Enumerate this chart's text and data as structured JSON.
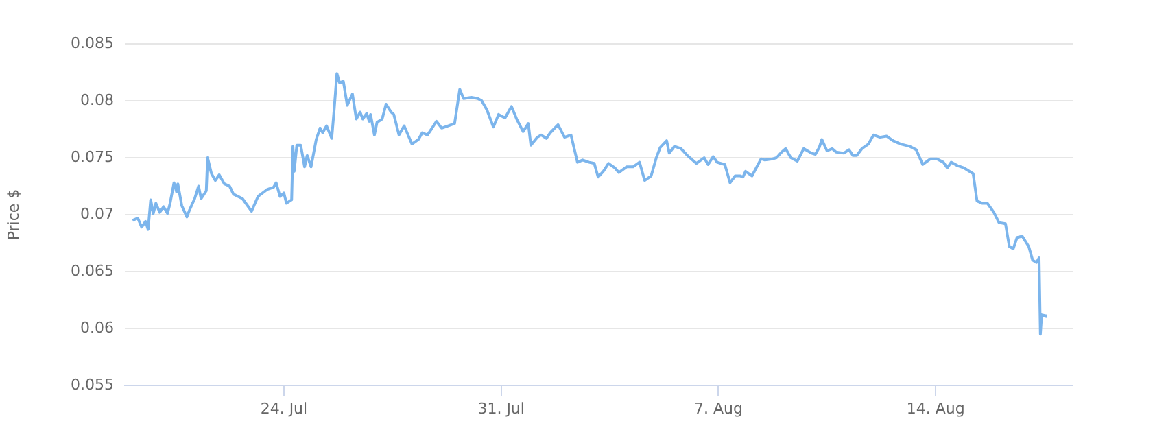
{
  "chart_data": {
    "type": "line",
    "ylabel": "Price $",
    "x": [
      "--07-19T03:00",
      "--07-19T07:00",
      "--07-19T10:00",
      "--07-19T13:00",
      "--07-19T15:00",
      "--07-19T17:00",
      "--07-19T19:00",
      "--07-19T21:00",
      "--07-20T00:00",
      "--07-20T03:00",
      "--07-20T06:00",
      "--07-20T08:00",
      "--07-20T11:00",
      "--07-20T13:00",
      "--07-20T14:00",
      "--07-20T17:00",
      "--07-20T21:00",
      "--07-20T23:00",
      "--07-21T03:00",
      "--07-21T06:00",
      "--07-21T08:00",
      "--07-21T12:00",
      "--07-21T13:00",
      "--07-21T16:00",
      "--07-21T19:00",
      "--07-21T22:00",
      "--07-22T02:00",
      "--07-22T06:00",
      "--07-22T09:00",
      "--07-22T16:00",
      "--07-22T23:00",
      "--07-23T04:00",
      "--07-23T11:00",
      "--07-23T16:00",
      "--07-23T18:00",
      "--07-23T21:00",
      "--07-24T00:00",
      "--07-24T02:00",
      "--07-24T06:00",
      "--07-24T07:00",
      "--07-24T08:00",
      "--07-24T10:00",
      "--07-24T13:00",
      "--07-24T16:00",
      "--07-24T18:00",
      "--07-24T21:00",
      "--07-25T01:00",
      "--07-25T04:00",
      "--07-25T06:00",
      "--07-25T09:00",
      "--07-25T13:00",
      "--07-25T15:00",
      "--07-25T17:00",
      "--07-25T19:00",
      "--07-25T22:00",
      "--07-26T01:00",
      "--07-26T05:00",
      "--07-26T08:00",
      "--07-26T11:00",
      "--07-26T13:00",
      "--07-26T16:00",
      "--07-26T18:00",
      "--07-26T19:00",
      "--07-26T22:00",
      "--07-27T00:00",
      "--07-27T04:00",
      "--07-27T07:00",
      "--07-27T11:00",
      "--07-27T13:00",
      "--07-27T17:00",
      "--07-27T21:00",
      "--07-28T00:00",
      "--07-28T03:00",
      "--07-28T08:00",
      "--07-28T11:00",
      "--07-28T15:00",
      "--07-28T18:00",
      "--07-28T22:00",
      "--07-29T02:00",
      "--07-29T07:00",
      "--07-29T12:00",
      "--07-29T16:00",
      "--07-29T19:00",
      "--07-30T01:00",
      "--07-30T06:00",
      "--07-30T09:00",
      "--07-30T13:00",
      "--07-30T18:00",
      "--07-30T22:00",
      "--07-31T03:00",
      "--07-31T08:00",
      "--07-31T12:00",
      "--07-31T17:00",
      "--07-31T21:00",
      "--07-31T23:00",
      "--08-01T04:00",
      "--08-01T07:00",
      "--08-01T11:00",
      "--08-01T14:00",
      "--08-01T20:00",
      "--08-02T01:00",
      "--08-02T06:00",
      "--08-02T11:00",
      "--08-02T15:00",
      "--08-02T20:00",
      "--08-03T00:00",
      "--08-03T03:00",
      "--08-03T07:00",
      "--08-03T11:00",
      "--08-03T16:00",
      "--08-03T19:00",
      "--08-04T01:00",
      "--08-04T06:00",
      "--08-04T11:00",
      "--08-04T15:00",
      "--08-04T20:00",
      "--08-05T00:00",
      "--08-05T03:00",
      "--08-05T08:00",
      "--08-05T10:00",
      "--08-05T14:00",
      "--08-05T19:00",
      "--08-06T00:00",
      "--08-06T07:00",
      "--08-06T13:00",
      "--08-06T16:00",
      "--08-06T20:00",
      "--08-06T23:00",
      "--08-07T05:00",
      "--08-07T09:00",
      "--08-07T13:00",
      "--08-07T17:00",
      "--08-07T19:00",
      "--08-07T21:00",
      "--08-08T02:00",
      "--08-08T09:00",
      "--08-08T12:00",
      "--08-08T18:00",
      "--08-08T21:00",
      "--08-09T01:00",
      "--08-09T04:00",
      "--08-09T08:00",
      "--08-09T13:00",
      "--08-09T18:00",
      "--08-10T00:00",
      "--08-10T03:00",
      "--08-10T06:00",
      "--08-10T08:00",
      "--08-10T12:00",
      "--08-10T16:00",
      "--08-10T19:00",
      "--08-11T01:00",
      "--08-11T05:00",
      "--08-11T08:00",
      "--08-11T11:00",
      "--08-11T15:00",
      "--08-11T20:00",
      "--08-12T00:00",
      "--08-12T05:00",
      "--08-12T10:00",
      "--08-12T15:00",
      "--08-12T21:00",
      "--08-13T04:00",
      "--08-13T09:00",
      "--08-13T14:00",
      "--08-13T20:00",
      "--08-14T01:00",
      "--08-14T06:00",
      "--08-14T09:00",
      "--08-14T12:00",
      "--08-14T17:00",
      "--08-14T22:00",
      "--08-15T05:00",
      "--08-15T08:00",
      "--08-15T12:00",
      "--08-15T16:00",
      "--08-15T21:00",
      "--08-16T01:00",
      "--08-16T06:00",
      "--08-16T09:00",
      "--08-16T12:00",
      "--08-16T15:00",
      "--08-16T19:00",
      "--08-17T00:00",
      "--08-17T03:00",
      "--08-17T06:00",
      "--08-17T08:00",
      "--08-17T09:00",
      "--08-17T10:00",
      "--08-17T14:00"
    ],
    "series": [
      {
        "color": "#7cb5ec",
        "values": [
          0.0695,
          0.0697,
          0.0689,
          0.0694,
          0.0687,
          0.0713,
          0.0701,
          0.071,
          0.0702,
          0.0707,
          0.0701,
          0.071,
          0.0728,
          0.072,
          0.0727,
          0.0708,
          0.0698,
          0.0704,
          0.0714,
          0.0725,
          0.0714,
          0.0721,
          0.075,
          0.0736,
          0.073,
          0.0735,
          0.0727,
          0.0725,
          0.0718,
          0.0714,
          0.0703,
          0.0716,
          0.0722,
          0.0724,
          0.0728,
          0.0716,
          0.0719,
          0.071,
          0.0713,
          0.076,
          0.0738,
          0.0761,
          0.0761,
          0.0742,
          0.0752,
          0.0742,
          0.0766,
          0.0776,
          0.0772,
          0.0778,
          0.0767,
          0.0794,
          0.0824,
          0.0816,
          0.0817,
          0.0796,
          0.0806,
          0.0784,
          0.079,
          0.0784,
          0.0789,
          0.0782,
          0.0788,
          0.077,
          0.0781,
          0.0784,
          0.0797,
          0.079,
          0.0788,
          0.077,
          0.0778,
          0.077,
          0.0762,
          0.0766,
          0.0772,
          0.077,
          0.0775,
          0.0782,
          0.0776,
          0.0778,
          0.078,
          0.081,
          0.0802,
          0.0803,
          0.0802,
          0.08,
          0.0792,
          0.0777,
          0.0788,
          0.0785,
          0.0795,
          0.0784,
          0.0773,
          0.078,
          0.0761,
          0.0768,
          0.077,
          0.0767,
          0.0772,
          0.0779,
          0.0768,
          0.077,
          0.0746,
          0.0748,
          0.0746,
          0.0745,
          0.0733,
          0.0738,
          0.0745,
          0.0741,
          0.0737,
          0.0742,
          0.0742,
          0.0746,
          0.073,
          0.0734,
          0.075,
          0.0759,
          0.0765,
          0.0754,
          0.076,
          0.0758,
          0.0752,
          0.0745,
          0.075,
          0.0744,
          0.0751,
          0.0746,
          0.0744,
          0.0728,
          0.0734,
          0.0734,
          0.0733,
          0.0738,
          0.0734,
          0.0749,
          0.0748,
          0.0749,
          0.075,
          0.0755,
          0.0758,
          0.075,
          0.0747,
          0.0758,
          0.0754,
          0.0753,
          0.0759,
          0.0766,
          0.0756,
          0.0758,
          0.0755,
          0.0754,
          0.0757,
          0.0752,
          0.0752,
          0.0758,
          0.0762,
          0.077,
          0.0768,
          0.0769,
          0.0765,
          0.0762,
          0.076,
          0.0757,
          0.0744,
          0.0749,
          0.0749,
          0.0746,
          0.0741,
          0.0746,
          0.0743,
          0.0741,
          0.0736,
          0.0712,
          0.071,
          0.071,
          0.0702,
          0.0693,
          0.0692,
          0.0672,
          0.067,
          0.068,
          0.0681,
          0.0672,
          0.066,
          0.0658,
          0.0662,
          0.0595,
          0.0612,
          0.0611
        ]
      }
    ],
    "xlim": [
      "--07-18T21:00",
      "--08-18T10:00"
    ],
    "xticks": [
      {
        "value": "--07-24",
        "label": "24. Jul"
      },
      {
        "value": "--07-31",
        "label": "31. Jul"
      },
      {
        "value": "--08-07",
        "label": "7. Aug"
      },
      {
        "value": "--08-14",
        "label": "14. Aug"
      }
    ],
    "ylim": [
      0.055,
      0.085
    ],
    "yticks": [
      0.055,
      0.06,
      0.065,
      0.07,
      0.075,
      0.08,
      0.085
    ],
    "grid": "y",
    "legend": false,
    "marker": "none",
    "line_style": "solid"
  }
}
